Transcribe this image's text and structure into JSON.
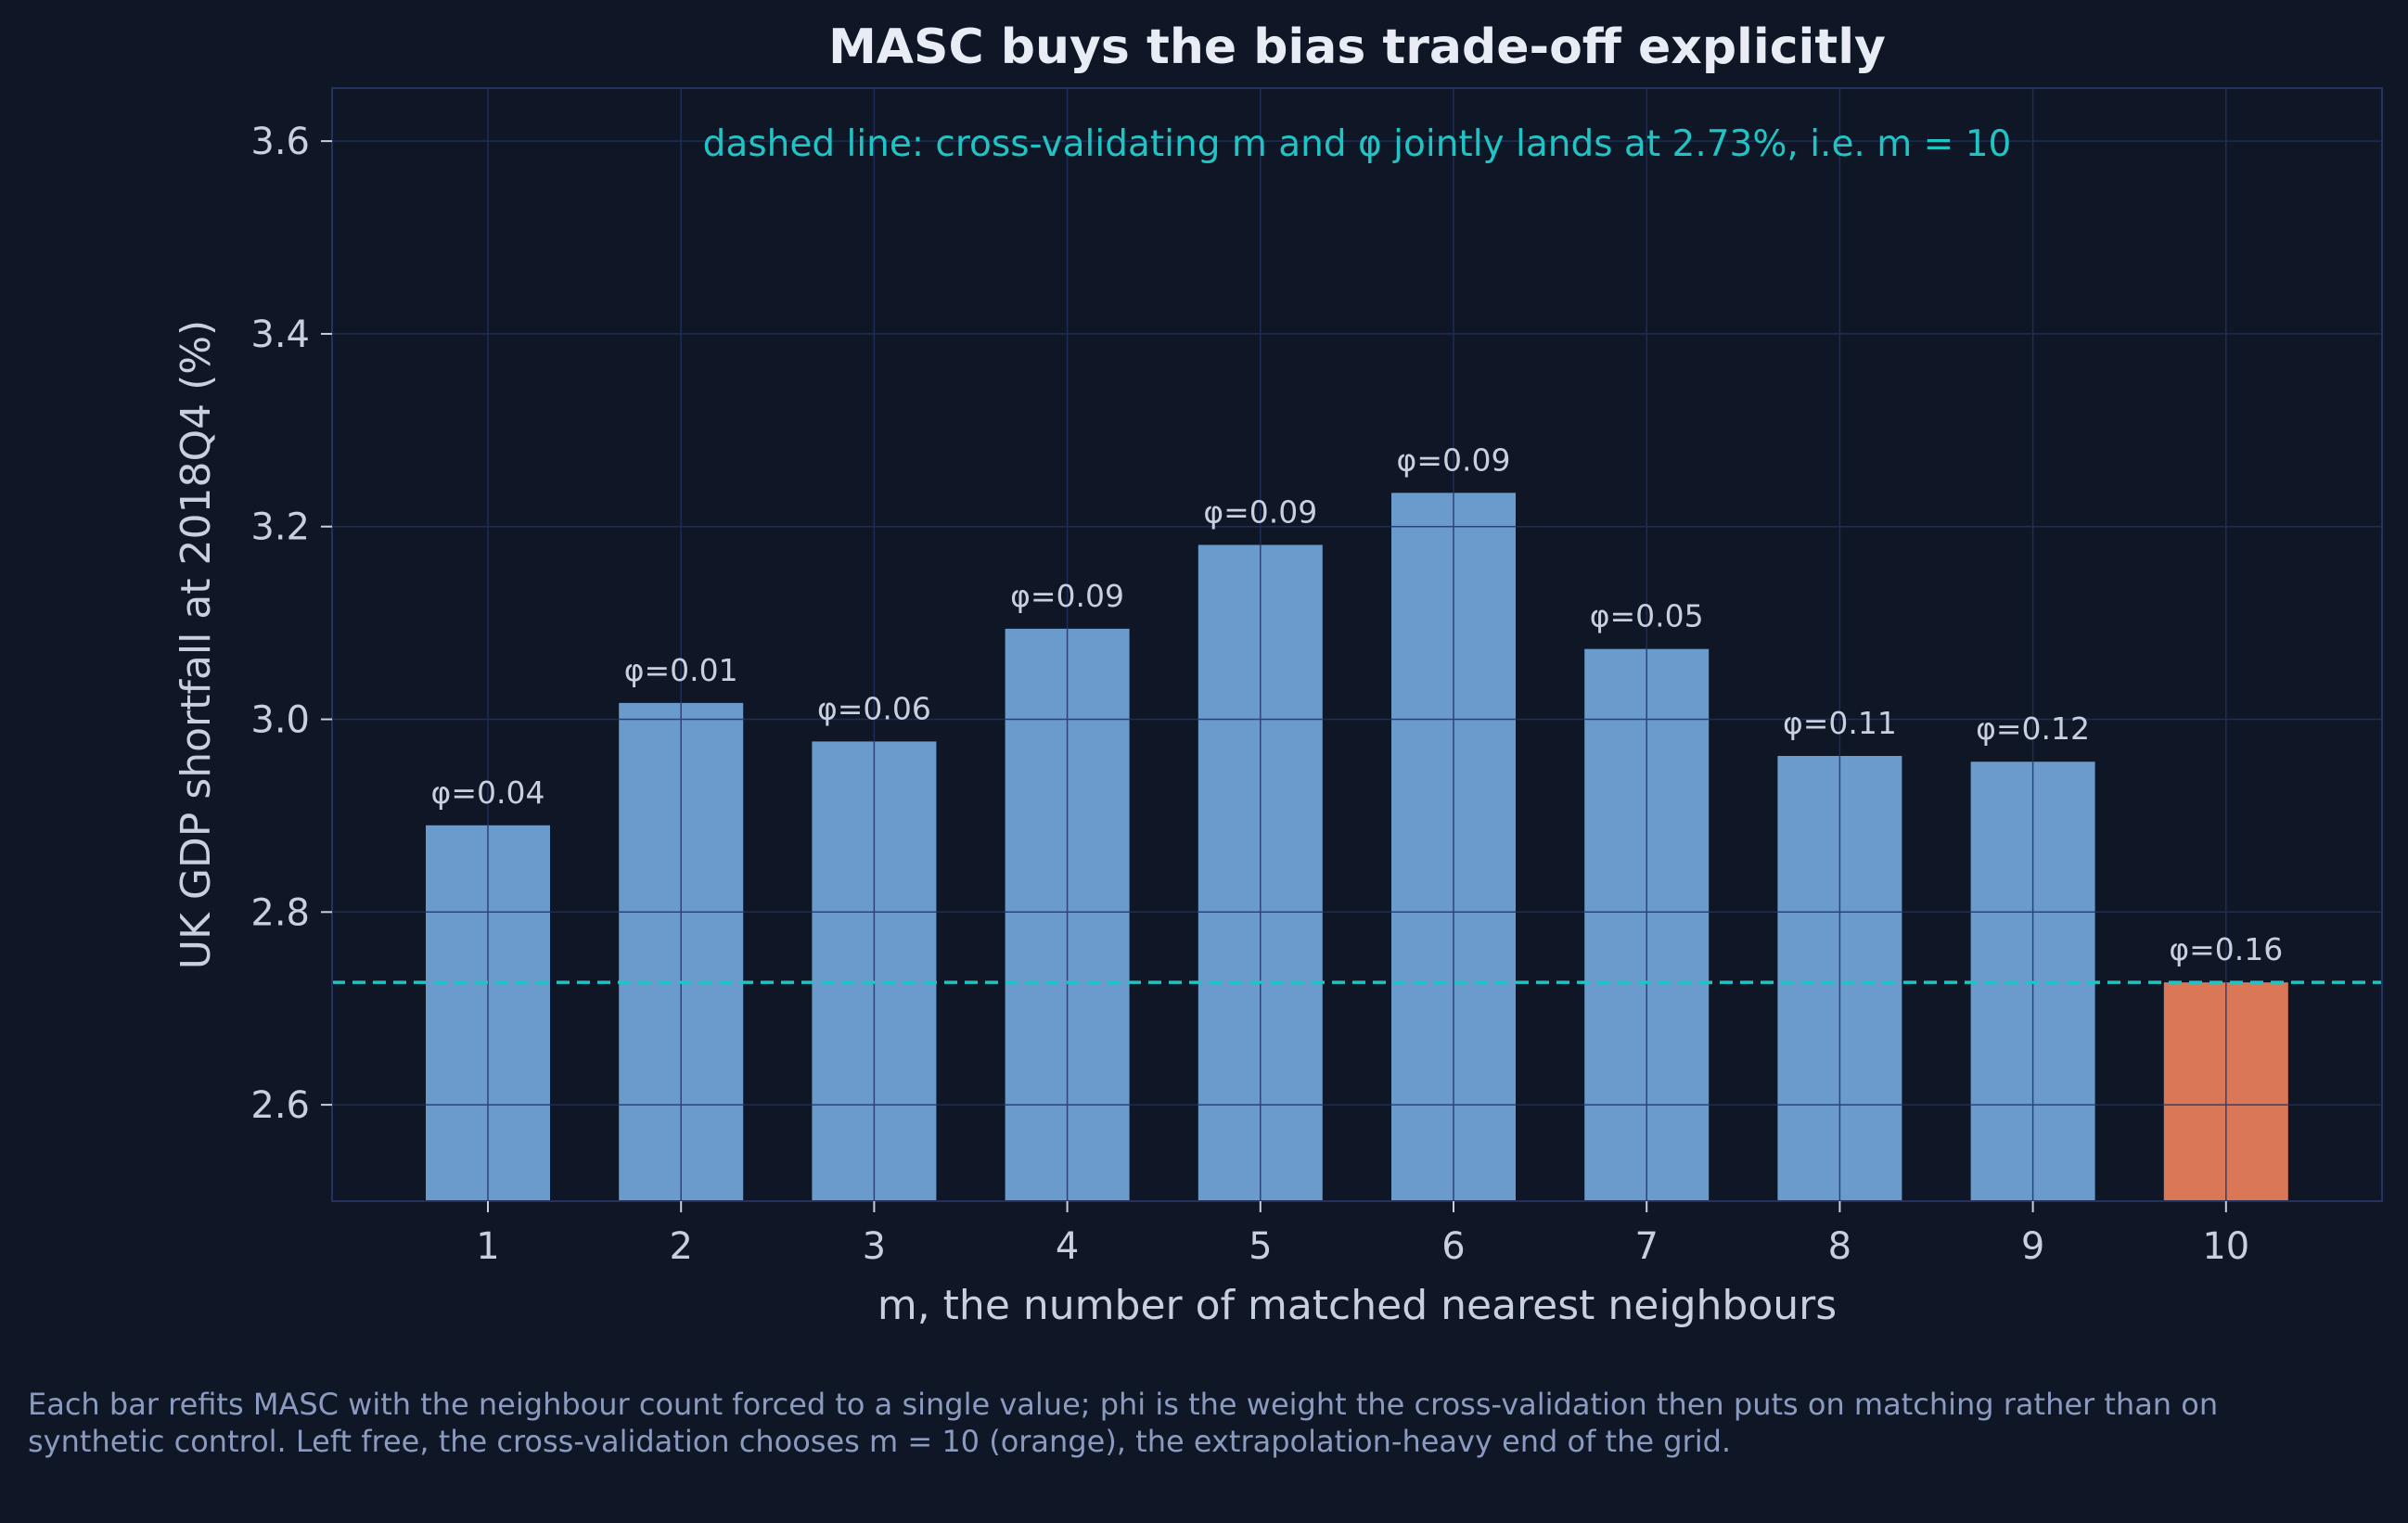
{
  "chart_data": {
    "type": "bar",
    "title": "MASC buys the bias trade-off explicitly",
    "annotation": "dashed line: cross-validating m and φ jointly lands at 2.73%, i.e. m = 10",
    "xlabel": "m, the number of matched nearest neighbours",
    "ylabel": "UK GDP shortfall at 2018Q4 (%)",
    "categories": [
      "1",
      "2",
      "3",
      "4",
      "5",
      "6",
      "7",
      "8",
      "9",
      "10"
    ],
    "values": [
      2.89,
      3.017,
      2.977,
      3.094,
      3.181,
      3.235,
      3.073,
      2.962,
      2.956,
      2.727
    ],
    "bar_labels": [
      "φ=0.04",
      "φ=0.01",
      "φ=0.06",
      "φ=0.09",
      "φ=0.09",
      "φ=0.09",
      "φ=0.05",
      "φ=0.11",
      "φ=0.12",
      "φ=0.16"
    ],
    "highlight_index": 9,
    "reference_line": 2.727,
    "ylim": [
      2.5,
      3.655
    ],
    "yticks": [
      2.6,
      2.8,
      3.0,
      3.2,
      3.4,
      3.6
    ],
    "ytick_labels": [
      "2.6",
      "2.8",
      "3.0",
      "3.2",
      "3.4",
      "3.6"
    ],
    "grid": true,
    "colors": {
      "background": "#0f1626",
      "bar": "#6b9bcc",
      "highlight": "#d97757",
      "reference_line": "#20c4c4",
      "annotation": "#20c4c4",
      "title": "#e8ecf4",
      "axis_text": "#c8d0e0",
      "grid": "#1e2d55",
      "bar_grid": "#2c4377",
      "frame": "#24335e"
    }
  },
  "caption": "Each bar refits MASC with the neighbour count forced to a single value; phi is the weight the cross-validation then puts on matching rather than on synthetic control. Left free, the cross-validation chooses m = 10 (orange), the extrapolation-heavy end of the grid."
}
